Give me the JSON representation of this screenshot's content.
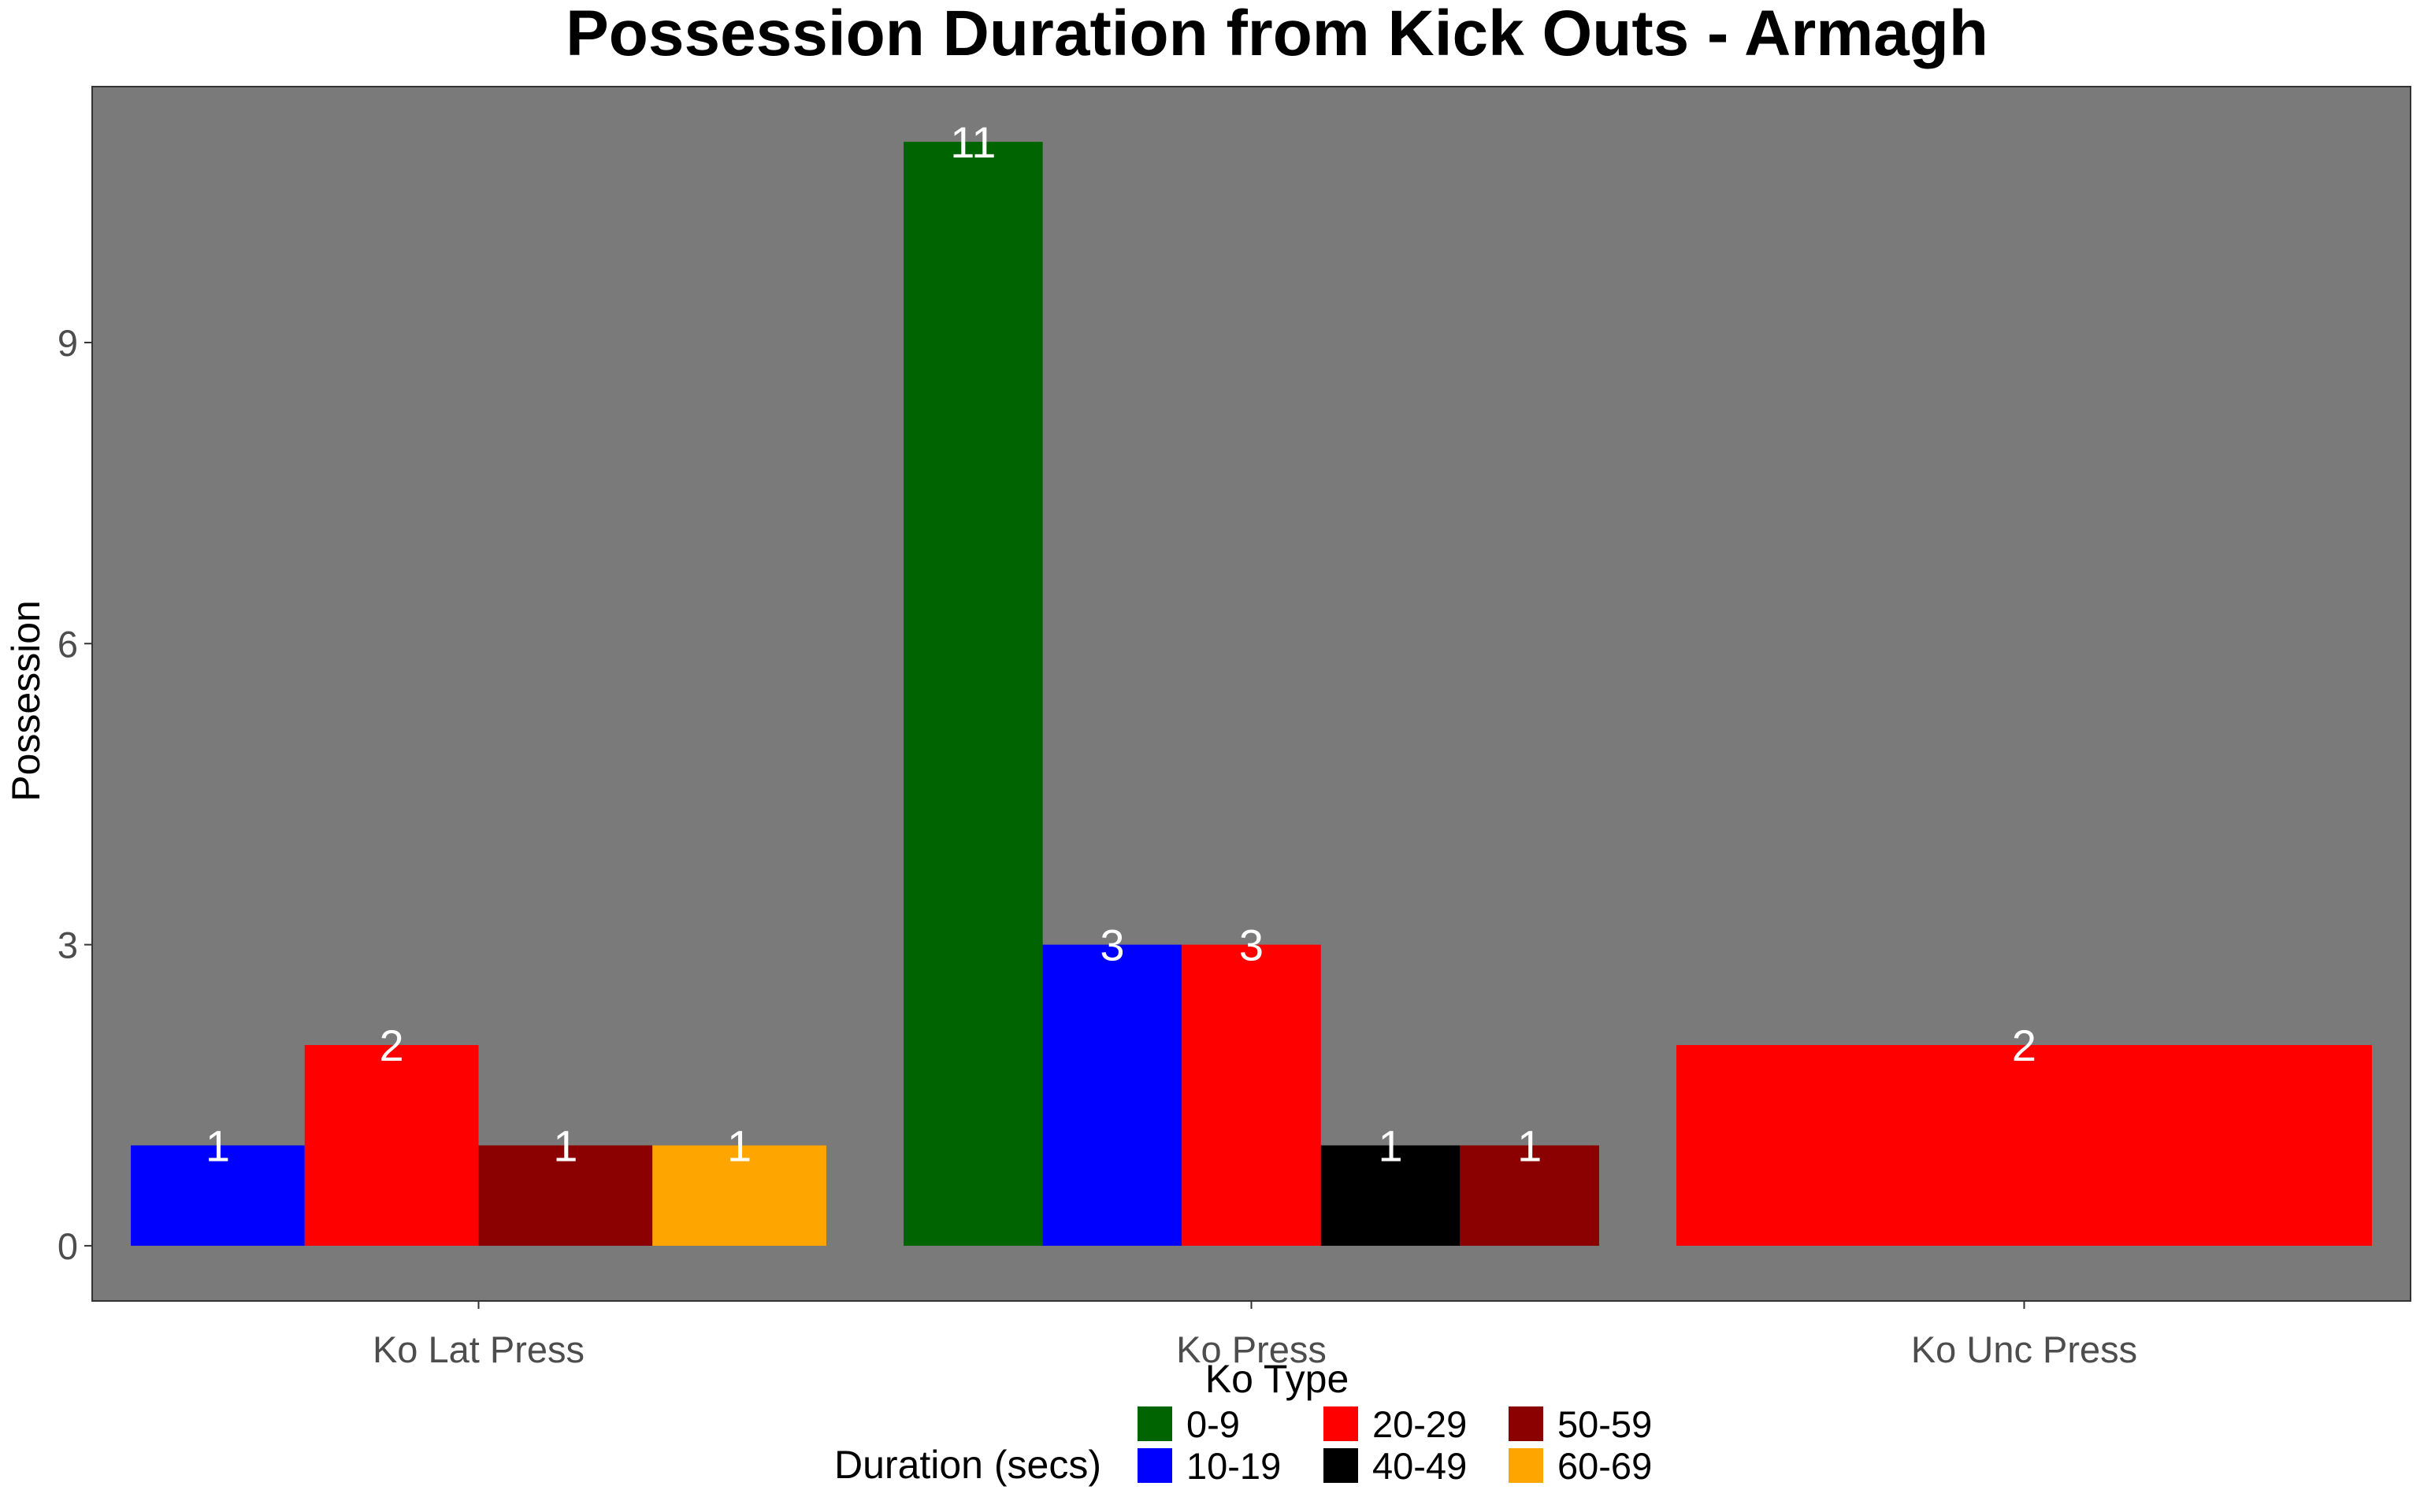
{
  "chart_data": {
    "type": "bar",
    "title": "Possession Duration from Kick Outs - Armagh",
    "xlabel": "Ko Type",
    "ylabel": "Possession",
    "categories": [
      "Ko Lat Press",
      "Ko Press",
      "Ko Unc Press"
    ],
    "ylim": [
      -0.55,
      11.55
    ],
    "yticks": [
      0,
      3,
      6,
      9
    ],
    "grid": false,
    "panel_color": "#7a7a7a",
    "legend": {
      "title": "Duration (secs)",
      "position": "bottom",
      "entries": [
        {
          "label": "0-9",
          "color": "#006400"
        },
        {
          "label": "10-19",
          "color": "#0000ff"
        },
        {
          "label": "20-29",
          "color": "#ff0000"
        },
        {
          "label": "40-49",
          "color": "#000000"
        },
        {
          "label": "50-59",
          "color": "#8b0000"
        },
        {
          "label": "60-69",
          "color": "#ffa500"
        }
      ]
    },
    "groups": [
      {
        "category": "Ko Lat Press",
        "bars": [
          {
            "series": "10-19",
            "value": 1
          },
          {
            "series": "20-29",
            "value": 2
          },
          {
            "series": "50-59",
            "value": 1
          },
          {
            "series": "60-69",
            "value": 1
          }
        ]
      },
      {
        "category": "Ko Press",
        "bars": [
          {
            "series": "0-9",
            "value": 11
          },
          {
            "series": "10-19",
            "value": 3
          },
          {
            "series": "20-29",
            "value": 3
          },
          {
            "series": "40-49",
            "value": 1
          },
          {
            "series": "50-59",
            "value": 1
          }
        ]
      },
      {
        "category": "Ko Unc Press",
        "bars": [
          {
            "series": "20-29",
            "value": 2
          }
        ]
      }
    ]
  }
}
